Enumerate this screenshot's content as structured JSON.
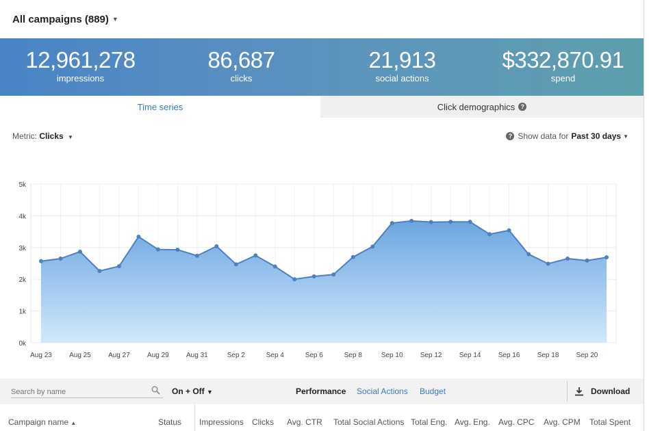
{
  "header": {
    "title": "All campaigns (889)"
  },
  "stats": [
    {
      "value": "12,961,278",
      "label": "impressions"
    },
    {
      "value": "86,687",
      "label": "clicks"
    },
    {
      "value": "21,913",
      "label": "social actions"
    },
    {
      "value": "$332,870.91",
      "label": "spend"
    }
  ],
  "tabs": {
    "time_series": "Time series",
    "click_demographics": "Click demographics"
  },
  "controls": {
    "metric_label": "Metric:",
    "metric_value": "Clicks",
    "show_data_label": "Show data for",
    "show_data_value": "Past 30 days"
  },
  "chart_data": {
    "type": "area",
    "y_ticks": [
      "0k",
      "1k",
      "2k",
      "3k",
      "4k",
      "5k"
    ],
    "ylim": [
      0,
      5000
    ],
    "x_tick_labels": [
      "Aug 23",
      "Aug 25",
      "Aug 27",
      "Aug 29",
      "Aug 31",
      "Sep 2",
      "Sep 4",
      "Sep 6",
      "Sep 8",
      "Sep 10",
      "Sep 12",
      "Sep 14",
      "Sep 16",
      "Sep 18",
      "Sep 20"
    ],
    "x": [
      "Aug 23",
      "Aug 24",
      "Aug 25",
      "Aug 26",
      "Aug 27",
      "Aug 28",
      "Aug 29",
      "Aug 30",
      "Aug 31",
      "Sep 1",
      "Sep 2",
      "Sep 3",
      "Sep 4",
      "Sep 5",
      "Sep 6",
      "Sep 7",
      "Sep 8",
      "Sep 9",
      "Sep 10",
      "Sep 11",
      "Sep 12",
      "Sep 13",
      "Sep 14",
      "Sep 15",
      "Sep 16",
      "Sep 17",
      "Sep 18",
      "Sep 19",
      "Sep 20",
      "Sep 21"
    ],
    "series": [
      {
        "values": [
          2570,
          2650,
          2870,
          2260,
          2410,
          3340,
          2940,
          2930,
          2740,
          3040,
          2470,
          2750,
          2400,
          2000,
          2090,
          2150,
          2700,
          3030,
          3770,
          3840,
          3800,
          3810,
          3810,
          3420,
          3540,
          2790,
          2490,
          2650,
          2590,
          2690
        ]
      }
    ],
    "grid": true
  },
  "toolbar": {
    "search_placeholder": "Search by name",
    "on_off": "On + Off",
    "performance": "Performance",
    "social_actions": "Social Actions",
    "budget": "Budget",
    "download": "Download"
  },
  "table": {
    "columns": [
      "Campaign name",
      "Status",
      "Impressions",
      "Clicks",
      "Avg. CTR",
      "Total Social Actions",
      "Total Eng.",
      "Avg. Eng.",
      "Avg. CPC",
      "Avg. CPM",
      "Total Spent"
    ]
  },
  "colors": {
    "accent": "#3c78c2",
    "line": "#4f7fc2",
    "area_top": "#6aa6e0",
    "area_bottom": "#cfe6fb"
  }
}
